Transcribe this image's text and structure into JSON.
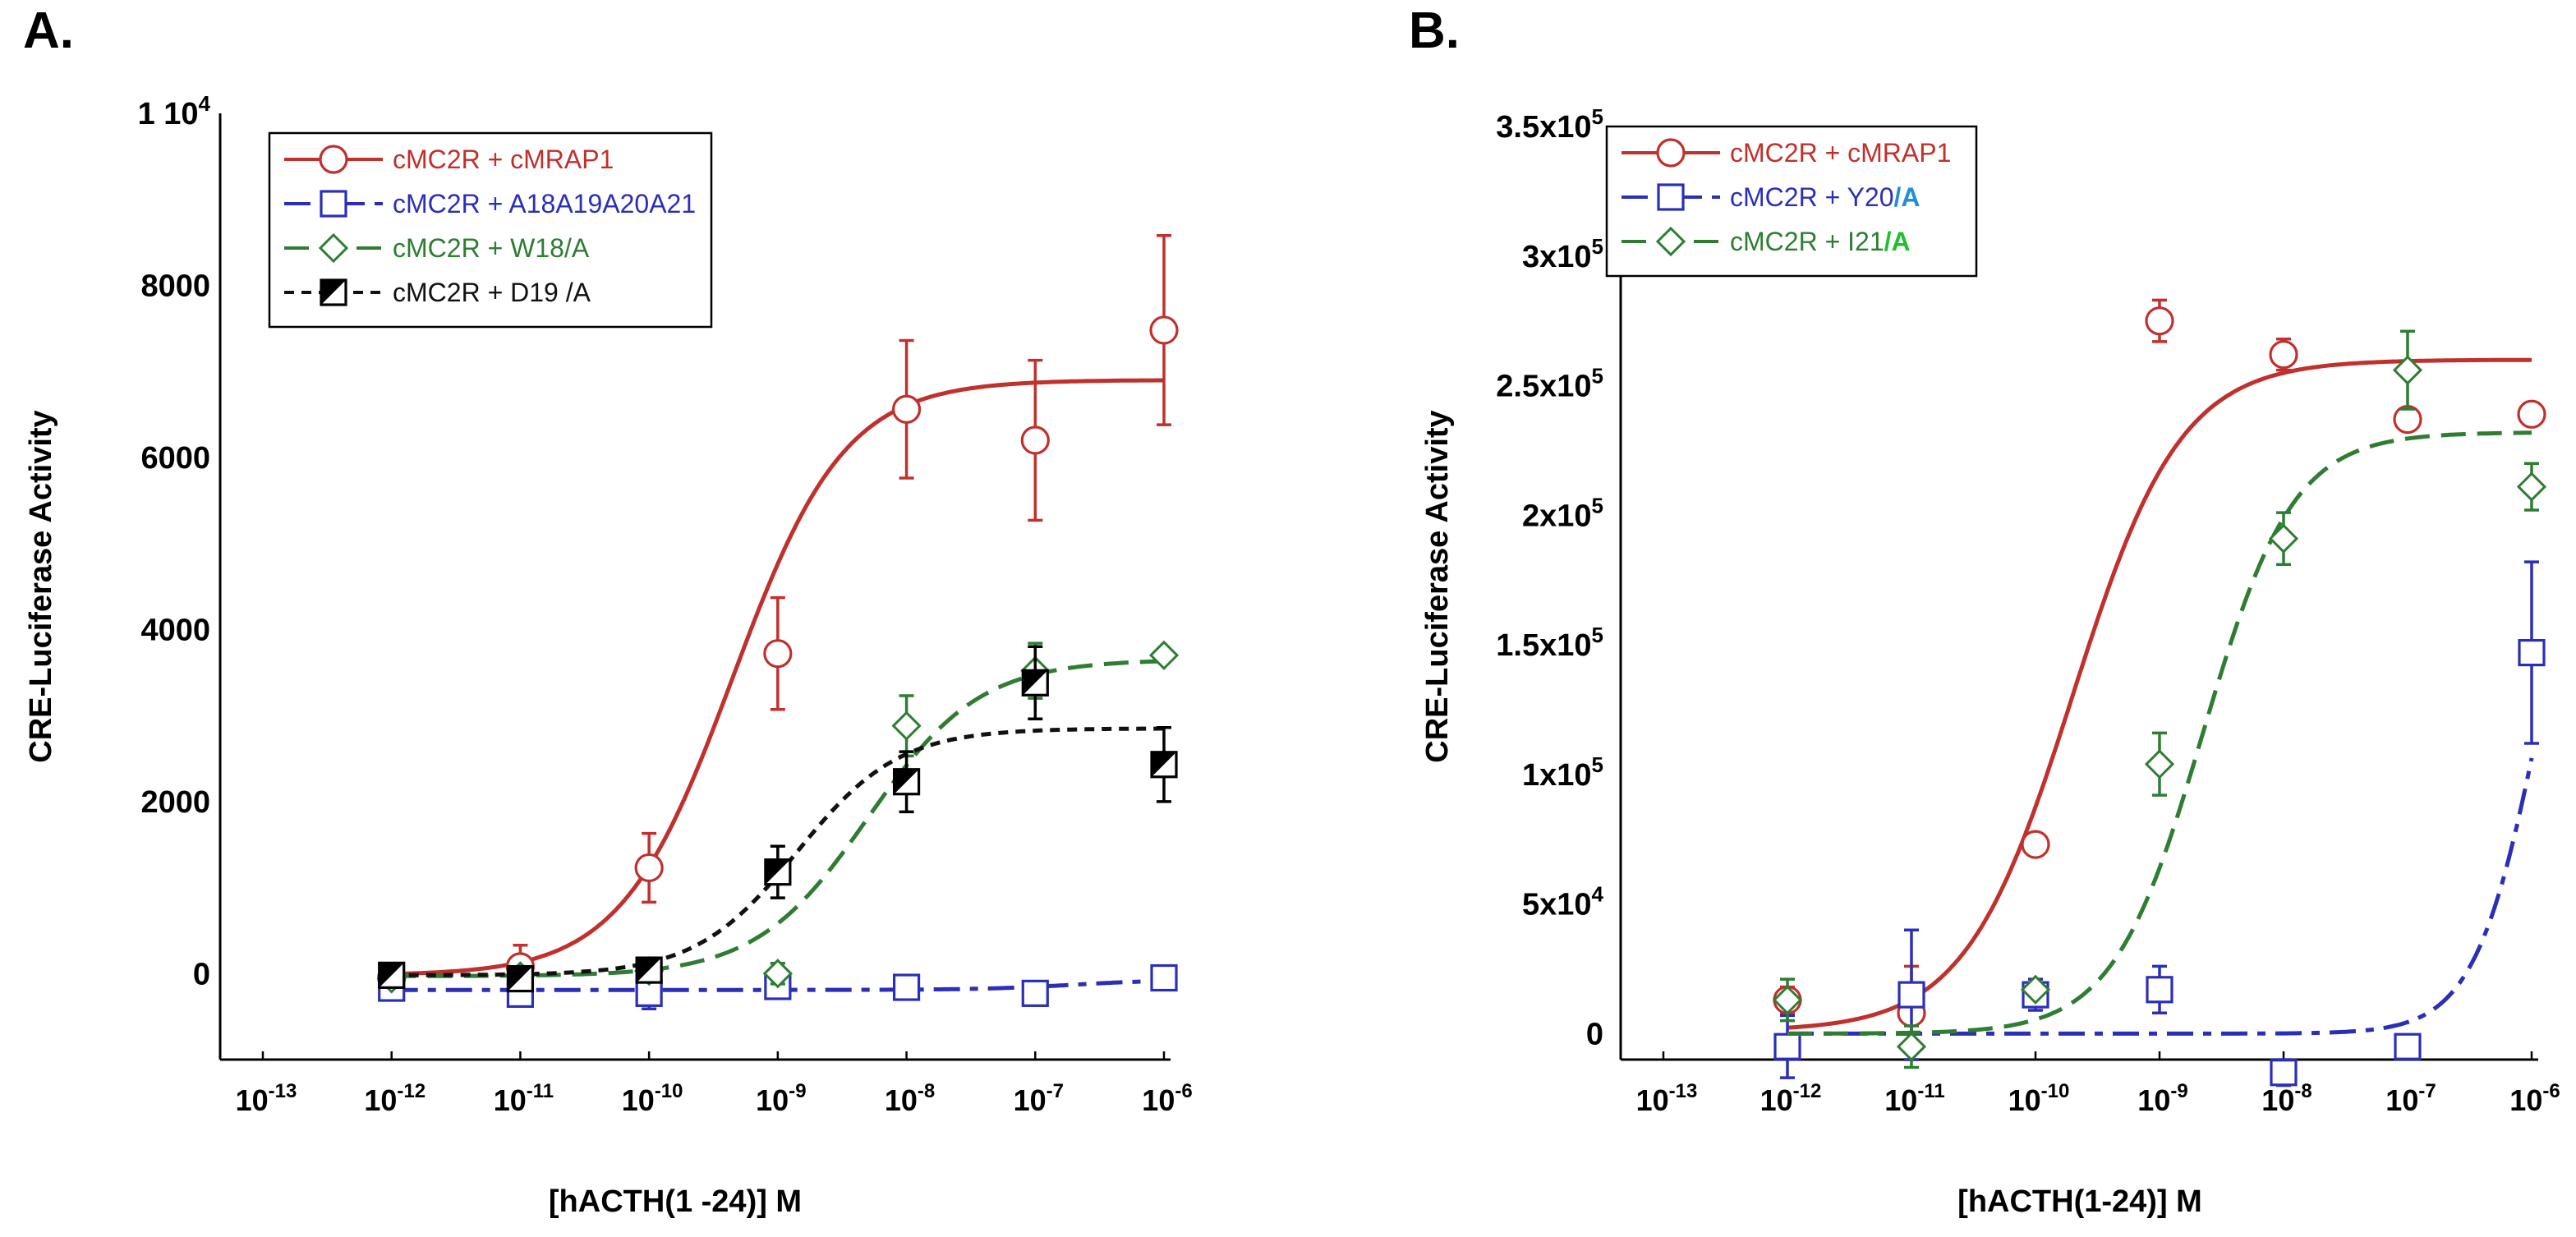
{
  "chart_data": [
    {
      "panel": "A.",
      "type": "scatter",
      "xscale": "log",
      "xlabel": "[hACTH(1 -24)] M",
      "ylabel": "CRE-Luciferase Activity",
      "ylim": [
        -1000,
        10000
      ],
      "y_ticks": [
        {
          "value": 0,
          "label": "0"
        },
        {
          "value": 2000,
          "label": "2000"
        },
        {
          "value": 4000,
          "label": "4000"
        },
        {
          "value": 6000,
          "label": "6000"
        },
        {
          "value": 8000,
          "label": "8000"
        },
        {
          "value": 10000,
          "label": "1 10",
          "sup": "4"
        }
      ],
      "x_ticks": [
        {
          "exp": -13,
          "label": "10",
          "sup": "-13"
        },
        {
          "exp": -12,
          "label": "10",
          "sup": "-12"
        },
        {
          "exp": -11,
          "label": "10",
          "sup": "-11"
        },
        {
          "exp": -10,
          "label": "10",
          "sup": "-10"
        },
        {
          "exp": -9,
          "label": "10",
          "sup": "-9"
        },
        {
          "exp": -8,
          "label": "10",
          "sup": "-8"
        },
        {
          "exp": -7,
          "label": "10",
          "sup": "-7"
        },
        {
          "exp": -6,
          "label": "10",
          "sup": "-6"
        }
      ],
      "legend_position": "top-left",
      "series": [
        {
          "name": "cMC2R + cMRAP1",
          "color": "#c0302c",
          "marker": "circle",
          "dash": "solid",
          "x_exp": [
            -12,
            -11,
            -10,
            -9,
            -8,
            -7,
            -6
          ],
          "y": [
            -50,
            80,
            1230,
            3720,
            6560,
            6200,
            7480
          ],
          "err": [
            60,
            250,
            400,
            650,
            800,
            930,
            1100
          ],
          "fit": {
            "bottom": -20,
            "top": 6900,
            "logec50": -9.35,
            "hill": 1.0
          }
        },
        {
          "name": "cMC2R + A18A19A20A21",
          "color": "#2b2fb8",
          "marker": "square",
          "dash": "dashdot",
          "x_exp": [
            -12,
            -11,
            -10,
            -9,
            -8,
            -7,
            -6
          ],
          "y": [
            -170,
            -240,
            -230,
            -150,
            -160,
            -230,
            -50
          ],
          "err": [
            40,
            50,
            180,
            90,
            130,
            90,
            60
          ],
          "fit": {
            "bottom": -190,
            "top": -70,
            "logec50": -6.7,
            "hill": 1.2
          }
        },
        {
          "name": "cMC2R + W18/A",
          "color": "#2e7d32",
          "marker": "diamond",
          "dash": "dashed",
          "x_exp": [
            -12,
            -11,
            -10,
            -9,
            -8,
            -7,
            -6
          ],
          "y": [
            -60,
            -30,
            30,
            0,
            2880,
            3520,
            3700
          ],
          "err": [
            50,
            60,
            80,
            120,
            350,
            320,
            60
          ],
          "fit": {
            "bottom": -30,
            "top": 3650,
            "logec50": -8.3,
            "hill": 1.0
          }
        },
        {
          "name": "cMC2R + D19 /A",
          "color": "#111111",
          "marker": "halfsquare",
          "dash": "dotted",
          "x_exp": [
            -12,
            -11,
            -10,
            -9,
            -8,
            -7,
            -6
          ],
          "y": [
            -20,
            -60,
            40,
            1180,
            2230,
            3380,
            2430
          ],
          "err": [
            40,
            80,
            120,
            300,
            350,
            420,
            430
          ],
          "fit": {
            "bottom": -20,
            "top": 2850,
            "logec50": -8.85,
            "hill": 1.1
          }
        }
      ]
    },
    {
      "panel": "B.",
      "type": "scatter",
      "xscale": "log",
      "xlabel": "[hACTH(1-24)] M",
      "ylabel": "CRE-Luciferase Activity",
      "ylim": [
        -10000,
        350000
      ],
      "y_ticks": [
        {
          "value": 0,
          "label": "0"
        },
        {
          "value": 50000,
          "label": "5x10",
          "sup": "4"
        },
        {
          "value": 100000,
          "label": "1x10",
          "sup": "5"
        },
        {
          "value": 150000,
          "label": "1.5x10",
          "sup": "5"
        },
        {
          "value": 200000,
          "label": "2x10",
          "sup": "5"
        },
        {
          "value": 250000,
          "label": "2.5x10",
          "sup": "5"
        },
        {
          "value": 300000,
          "label": "3x10",
          "sup": "5"
        },
        {
          "value": 350000,
          "label": "3.5x10",
          "sup": "5"
        }
      ],
      "x_ticks": [
        {
          "exp": -13,
          "label": "10",
          "sup": "-13"
        },
        {
          "exp": -12,
          "label": "10",
          "sup": "-12"
        },
        {
          "exp": -11,
          "label": "10",
          "sup": "-11"
        },
        {
          "exp": -10,
          "label": "10",
          "sup": "-10"
        },
        {
          "exp": -9,
          "label": "10",
          "sup": "-9"
        },
        {
          "exp": -8,
          "label": "10",
          "sup": "-8"
        },
        {
          "exp": -7,
          "label": "10",
          "sup": "-7"
        },
        {
          "exp": -6,
          "label": "10",
          "sup": "-6"
        }
      ],
      "legend_position": "top-left",
      "series": [
        {
          "name": "cMC2R + cMRAP1",
          "name_suffix": "",
          "color": "#c0302c",
          "suffix_color": "#c0302c",
          "marker": "circle",
          "dash": "solid",
          "x_exp": [
            -12,
            -11,
            -10,
            -9,
            -8,
            -7,
            -6
          ],
          "y": [
            13000,
            8000,
            73000,
            275000,
            262000,
            237000,
            239000
          ],
          "err": [
            5000,
            18000,
            0,
            8000,
            6000,
            0,
            0
          ],
          "fit": {
            "bottom": 1000,
            "top": 260000,
            "logec50": -9.7,
            "hill": 1.0
          }
        },
        {
          "name": "cMC2R + Y20",
          "name_suffix": "/A",
          "color": "#2b2fb8",
          "suffix_color": "#1e8fd8",
          "marker": "square",
          "dash": "dashdot",
          "x_exp": [
            -12,
            -11,
            -10,
            -9,
            -8,
            -7,
            -6
          ],
          "y": [
            -5000,
            15000,
            15000,
            17000,
            -15000,
            -5000,
            147000
          ],
          "err": [
            12000,
            25000,
            6000,
            9000,
            5000,
            4000,
            35000
          ],
          "fit": {
            "bottom": 0,
            "top": 260000,
            "logec50": -5.9,
            "hill": 1.6
          }
        },
        {
          "name": "cMC2R + I21",
          "name_suffix": "/A",
          "color": "#2e7d32",
          "suffix_color": "#1fbf2e",
          "marker": "diamond",
          "dash": "dashed",
          "x_exp": [
            -12,
            -11,
            -10,
            -9,
            -8,
            -7,
            -6
          ],
          "y": [
            13000,
            -5000,
            17000,
            104000,
            191000,
            256000,
            211000
          ],
          "err": [
            8000,
            8000,
            0,
            12000,
            10000,
            15000,
            9000
          ],
          "fit": {
            "bottom": 0,
            "top": 232000,
            "logec50": -8.65,
            "hill": 1.2
          }
        }
      ]
    }
  ]
}
